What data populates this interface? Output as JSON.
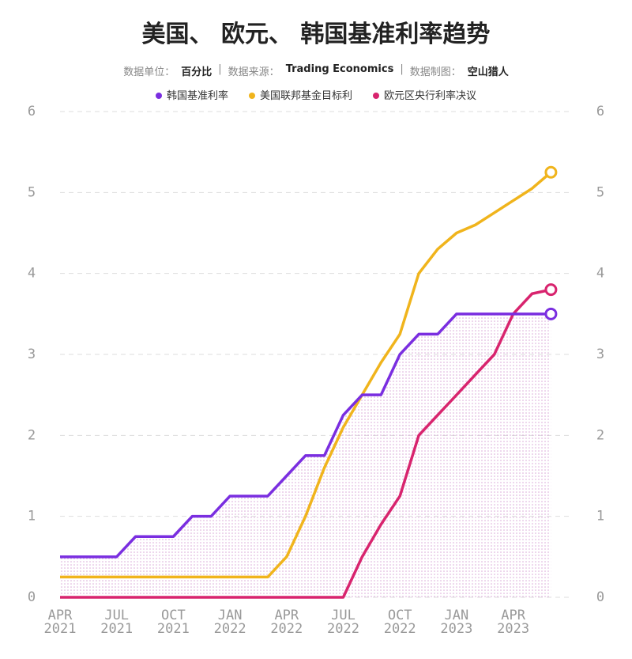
{
  "chart_data": {
    "type": "line",
    "title": "美国、 欧元、 韩国基准利率趋势",
    "subtitle": [
      {
        "label": "数据单位：",
        "value": "百分比"
      },
      {
        "label": "数据来源：",
        "value": "Trading Economics"
      },
      {
        "label": "数据制图：",
        "value": "空山猎人"
      }
    ],
    "categories": [
      "APR 2021",
      null,
      null,
      "JUL 2021",
      null,
      null,
      "OCT 2021",
      null,
      null,
      "JAN 2022",
      null,
      null,
      "APR 2022",
      null,
      null,
      "JUL 2022",
      null,
      null,
      "OCT 2022",
      null,
      null,
      "JAN 2023",
      null,
      null,
      "APR 2023",
      null,
      null
    ],
    "series": [
      {
        "name": "韩国基准利率",
        "color": "#7a2ee0",
        "values": [
          0.5,
          0.5,
          0.5,
          0.5,
          0.75,
          0.75,
          0.75,
          1.0,
          1.0,
          1.25,
          1.25,
          1.25,
          1.5,
          1.75,
          1.75,
          2.25,
          2.5,
          2.5,
          3.0,
          3.25,
          3.25,
          3.5,
          3.5,
          3.5,
          3.5,
          3.5,
          3.5
        ]
      },
      {
        "name": "美国联邦基金目标利",
        "color": "#f0b41c",
        "values": [
          0.25,
          0.25,
          0.25,
          0.25,
          0.25,
          0.25,
          0.25,
          0.25,
          0.25,
          0.25,
          0.25,
          0.25,
          0.5,
          1.0,
          1.6,
          2.1,
          2.5,
          2.9,
          3.25,
          4.0,
          4.3,
          4.5,
          4.6,
          4.75,
          4.9,
          5.05,
          5.25
        ]
      },
      {
        "name": "欧元区央行利率决议",
        "color": "#d8246e",
        "values": [
          0,
          0,
          0,
          0,
          0,
          0,
          0,
          0,
          0,
          0,
          0,
          0,
          0,
          0,
          0,
          0,
          0.5,
          0.9,
          1.25,
          2.0,
          2.25,
          2.5,
          2.75,
          3.0,
          3.5,
          3.75,
          3.8
        ]
      }
    ],
    "ylim": [
      0,
      6
    ],
    "yticks": [
      0,
      1,
      2,
      3,
      4,
      5,
      6
    ],
    "y2lim": [
      0,
      6
    ],
    "y2ticks": [
      0,
      1,
      2,
      3,
      4,
      5,
      6
    ],
    "grid": true
  }
}
